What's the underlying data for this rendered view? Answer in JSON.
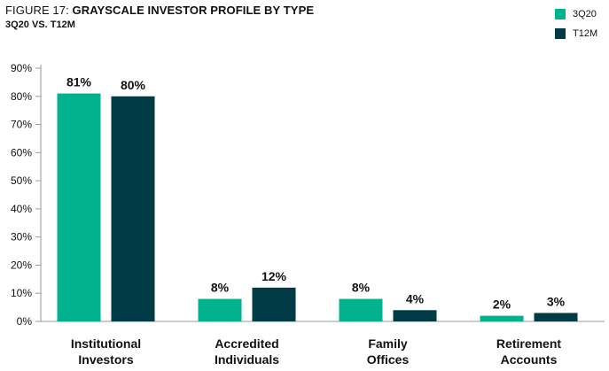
{
  "header": {
    "title_prefix": "FIGURE 17: ",
    "title_bold": "GRAYSCALE INVESTOR PROFILE BY TYPE",
    "subtitle": "3Q20 VS. T12M"
  },
  "colors": {
    "series1": "#00b38e",
    "series2": "#003b46",
    "axis": "#9a9a9a",
    "grid": "#dddddd"
  },
  "chart_data": {
    "type": "bar",
    "title": "FIGURE 17: GRAYSCALE INVESTOR PROFILE BY TYPE",
    "subtitle": "3Q20 VS. T12M",
    "categories": [
      [
        "Institutional",
        "Investors"
      ],
      [
        "Accredited",
        "Individuals"
      ],
      [
        "Family",
        "Offices"
      ],
      [
        "Retirement",
        "Accounts"
      ]
    ],
    "series": [
      {
        "name": "3Q20",
        "values": [
          81,
          8,
          8,
          2
        ],
        "labels": [
          "81%",
          "8%",
          "8%",
          "2%"
        ]
      },
      {
        "name": "T12M",
        "values": [
          80,
          12,
          4,
          3
        ],
        "labels": [
          "80%",
          "12%",
          "4%",
          "3%"
        ]
      }
    ],
    "ylim": [
      0,
      90
    ],
    "yticks": [
      "0%",
      "10%",
      "20%",
      "30%",
      "40%",
      "50%",
      "60%",
      "70%",
      "80%",
      "90%"
    ],
    "legend_position": "top-right",
    "grid": false
  }
}
